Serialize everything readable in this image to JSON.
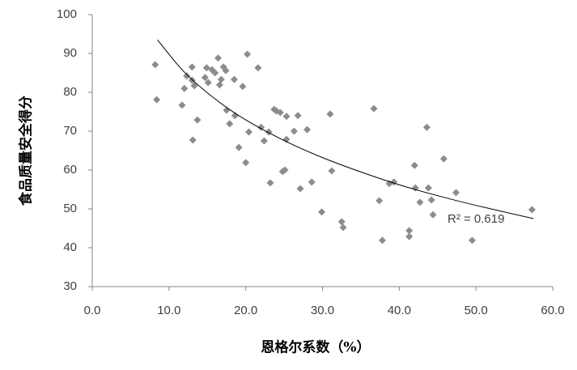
{
  "chart_data": {
    "type": "scatter",
    "xlabel": "恩格尔系数（%）",
    "ylabel": "食品质量安全得分",
    "annotation": "R² = 0.619",
    "color": "#8c8c8c",
    "x": [
      8.2,
      8.4,
      11.7,
      12.0,
      12.3,
      13.0,
      13.0,
      13.3,
      13.1,
      13.7,
      14.7,
      14.9,
      15.1,
      15.6,
      16.0,
      16.4,
      16.6,
      16.8,
      17.1,
      17.4,
      17.5,
      17.9,
      18.5,
      18.6,
      19.1,
      19.6,
      20.0,
      20.2,
      20.4,
      21.6,
      22.0,
      22.4,
      23.0,
      23.2,
      23.7,
      24.0,
      24.5,
      24.8,
      25.1,
      25.3,
      25.3,
      26.3,
      26.8,
      27.1,
      28.0,
      28.6,
      29.9,
      31.0,
      31.2,
      32.5,
      32.7,
      36.7,
      37.4,
      37.8,
      38.7,
      39.3,
      41.3,
      41.3,
      42.0,
      42.1,
      42.7,
      43.6,
      43.8,
      44.2,
      44.4,
      45.8,
      47.4,
      49.5,
      57.3
    ],
    "y": [
      87.1,
      78.1,
      76.7,
      81.0,
      84.2,
      86.5,
      83.1,
      81.7,
      67.7,
      72.9,
      83.8,
      86.3,
      82.5,
      85.8,
      85.0,
      88.8,
      81.9,
      83.3,
      86.5,
      85.6,
      75.4,
      71.9,
      83.3,
      74.0,
      65.8,
      81.5,
      61.9,
      89.8,
      69.8,
      86.3,
      71.0,
      67.5,
      69.8,
      56.7,
      75.6,
      75.2,
      74.8,
      59.6,
      60.0,
      73.8,
      67.9,
      70.0,
      74.0,
      55.2,
      70.4,
      56.9,
      49.2,
      74.4,
      59.8,
      46.7,
      45.2,
      75.8,
      52.1,
      41.9,
      56.5,
      56.9,
      44.4,
      42.9,
      61.2,
      55.4,
      51.7,
      71.0,
      55.4,
      52.3,
      48.5,
      62.9,
      54.2,
      41.9,
      49.8
    ],
    "trendline": {
      "color": "#000000",
      "x": [
        8.5,
        12,
        16,
        20,
        25,
        30,
        35,
        40,
        45,
        50,
        57.5
      ],
      "y": [
        93.5,
        85.2,
        78.3,
        72.9,
        67.6,
        63.2,
        59.5,
        56.2,
        53.4,
        50.9,
        47.5
      ]
    },
    "xlim": [
      0,
      60
    ],
    "xticks": [
      {
        "value": 0,
        "label": "0.0"
      },
      {
        "value": 10,
        "label": "10.0"
      },
      {
        "value": 20,
        "label": "20.0"
      },
      {
        "value": 30,
        "label": "30.0"
      },
      {
        "value": 40,
        "label": "40.0"
      },
      {
        "value": 50,
        "label": "50.0"
      },
      {
        "value": 60,
        "label": "60.0"
      }
    ],
    "ylim": [
      30,
      100
    ],
    "yticks": [
      30,
      40,
      50,
      60,
      70,
      80,
      90,
      100
    ],
    "grid": false
  }
}
